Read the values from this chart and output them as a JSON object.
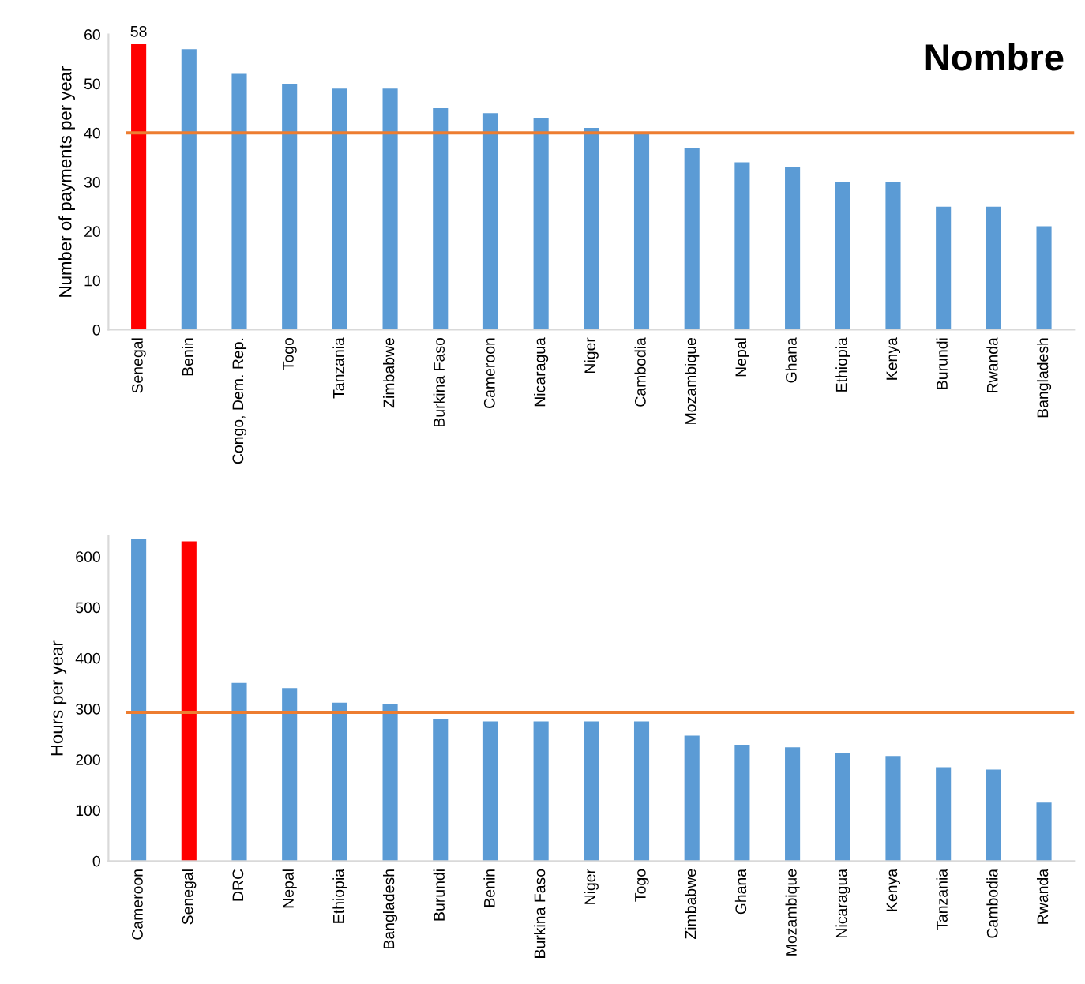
{
  "chart_data": [
    {
      "type": "bar",
      "ylabel": "Number of payments per year",
      "categories": [
        "Senegal",
        "Benin",
        "Congo, Dem. Rep.",
        "Togo",
        "Tanzania",
        "Zimbabwe",
        "Burkina Faso",
        "Cameroon",
        "Nicaragua",
        "Niger",
        "Cambodia",
        "Mozambique",
        "Nepal",
        "Ghana",
        "Ethiopia",
        "Kenya",
        "Burundi",
        "Rwanda",
        "Bangladesh"
      ],
      "values": [
        58,
        57,
        52,
        50,
        49,
        49,
        45,
        44,
        43,
        41,
        40,
        37,
        34,
        33,
        30,
        30,
        25,
        25,
        21
      ],
      "colors": [
        "#ff0000",
        "#5b9bd5",
        "#5b9bd5",
        "#5b9bd5",
        "#5b9bd5",
        "#5b9bd5",
        "#5b9bd5",
        "#5b9bd5",
        "#5b9bd5",
        "#5b9bd5",
        "#5b9bd5",
        "#5b9bd5",
        "#5b9bd5",
        "#5b9bd5",
        "#5b9bd5",
        "#5b9bd5",
        "#5b9bd5",
        "#5b9bd5",
        "#5b9bd5"
      ],
      "value_labels": [
        "58",
        null,
        null,
        null,
        null,
        null,
        null,
        null,
        null,
        null,
        null,
        null,
        null,
        null,
        null,
        null,
        null,
        null,
        null
      ],
      "ylim": [
        0,
        60
      ],
      "yticks": [
        0,
        10,
        20,
        30,
        40,
        50,
        60
      ],
      "ref_lines": [
        {
          "axis": "y",
          "value": 40,
          "color": "#ed7d31"
        }
      ],
      "annotations": [
        "Nombre"
      ]
    },
    {
      "type": "bar",
      "ylabel": "Hours per year",
      "categories": [
        "Cameroon",
        "Senegal",
        "DRC",
        "Nepal",
        "Ethiopia",
        "Bangladesh",
        "Burundi",
        "Benin",
        "Burkina Faso",
        "Niger",
        "Togo",
        "Zimbabwe",
        "Ghana",
        "Mozambique",
        "Nicaragua",
        "Kenya",
        "Tanzania",
        "Cambodia",
        "Rwanda"
      ],
      "values": [
        635,
        630,
        351,
        341,
        312,
        309,
        279,
        275,
        275,
        275,
        275,
        247,
        229,
        224,
        212,
        207,
        185,
        180,
        115
      ],
      "colors": [
        "#5b9bd5",
        "#ff0000",
        "#5b9bd5",
        "#5b9bd5",
        "#5b9bd5",
        "#5b9bd5",
        "#5b9bd5",
        "#5b9bd5",
        "#5b9bd5",
        "#5b9bd5",
        "#5b9bd5",
        "#5b9bd5",
        "#5b9bd5",
        "#5b9bd5",
        "#5b9bd5",
        "#5b9bd5",
        "#5b9bd5",
        "#5b9bd5",
        "#5b9bd5"
      ],
      "ylim": [
        0,
        640
      ],
      "yticks": [
        0,
        100,
        200,
        300,
        400,
        500,
        600
      ],
      "ref_lines": [
        {
          "axis": "y",
          "value": 293,
          "color": "#ed7d31"
        }
      ]
    }
  ]
}
